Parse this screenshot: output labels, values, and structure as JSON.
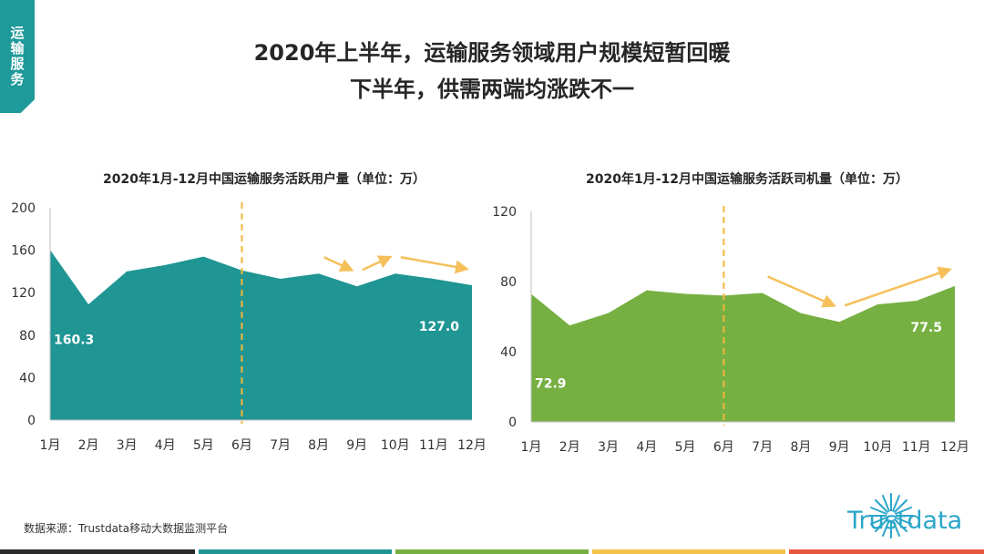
{
  "section_tab": [
    "运",
    "输",
    "服",
    "务"
  ],
  "title_line1": "2020年上半年，运输服务领域用户规模短暂回暖",
  "title_line2": "下半年，供需两端均涨跌不一",
  "source": "数据来源：Trustdata移动大数据监测平台",
  "logo_text": "Trustdata",
  "colors": {
    "left_area": "#1f9594",
    "right_area": "#76b043",
    "divider": "#f3b73b",
    "trend_arrow": "#f5c05a",
    "tab": "#1f9a9a"
  },
  "bottom_strip_colors": [
    "#2b2b2b",
    "#1f9594",
    "#76b043",
    "#f3c24d",
    "#e8553f"
  ],
  "chart_data": [
    {
      "type": "area",
      "title": "2020年1月-12月中国运输服务活跃用户量（单位：万）",
      "categories": [
        "1月",
        "2月",
        "3月",
        "4月",
        "5月",
        "6月",
        "7月",
        "8月",
        "9月",
        "10月",
        "11月",
        "12月"
      ],
      "values": [
        160.3,
        109,
        140,
        146,
        154,
        141,
        133,
        138,
        126,
        138,
        133,
        127.0
      ],
      "yticks": [
        0,
        40,
        80,
        120,
        160,
        200
      ],
      "ylim": [
        0,
        200
      ],
      "data_labels": [
        {
          "index": 0,
          "text": "160.3"
        },
        {
          "index": 11,
          "text": "127.0"
        }
      ],
      "divider_after": "6月",
      "trend_arrows": [
        {
          "from": 7,
          "to": 8
        },
        {
          "from": 8,
          "to": 9
        },
        {
          "from": 9,
          "to": 11
        }
      ]
    },
    {
      "type": "area",
      "title": "2020年1月-12月中国运输服务活跃司机量（单位：万）",
      "categories": [
        "1月",
        "2月",
        "3月",
        "4月",
        "5月",
        "6月",
        "7月",
        "8月",
        "9月",
        "10月",
        "11月",
        "12月"
      ],
      "values": [
        72.9,
        55,
        62,
        75,
        73,
        72,
        73.5,
        62,
        57,
        67,
        69,
        77.5
      ],
      "yticks": [
        0,
        40,
        80,
        120
      ],
      "ylim": [
        0,
        120
      ],
      "data_labels": [
        {
          "index": 0,
          "text": "72.9"
        },
        {
          "index": 11,
          "text": "77.5"
        }
      ],
      "divider_after": "6月",
      "trend_arrows": [
        {
          "from": 6,
          "to": 8
        },
        {
          "from": 8,
          "to": 11
        }
      ]
    }
  ]
}
